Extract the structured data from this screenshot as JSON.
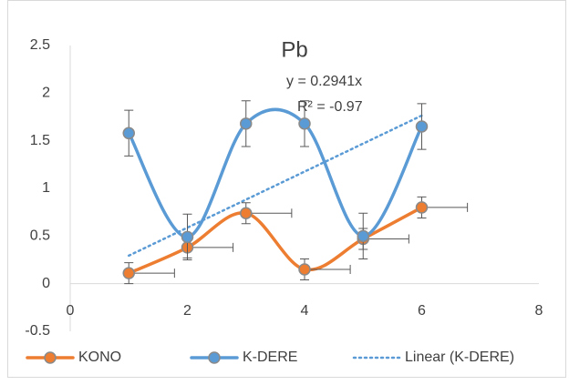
{
  "chart_data": {
    "type": "scatter",
    "title": "Pb",
    "series": [
      {
        "name": "KONO",
        "color": "#ed7d31",
        "x": [
          1,
          2,
          3,
          4,
          5,
          6
        ],
        "values": [
          0.11,
          0.38,
          0.74,
          0.15,
          0.47,
          0.8
        ],
        "y_error": 0.11,
        "x_error": 0.78
      },
      {
        "name": "K-DERE",
        "color": "#5b9bd5",
        "x": [
          1,
          2,
          3,
          4,
          5,
          6
        ],
        "values": [
          1.58,
          0.49,
          1.68,
          1.68,
          0.5,
          1.65
        ],
        "y_error": 0.24
      }
    ],
    "trendline": {
      "name": "Linear (K-DERE)",
      "series": 1,
      "slope": 0.2941,
      "color": "#5b9bd5"
    },
    "annotations": [
      "y = 0.2941x",
      "R² = -0.97"
    ],
    "xlim": [
      0,
      8
    ],
    "xticks": [
      0,
      2,
      4,
      6,
      8
    ],
    "ylim": [
      -0.5,
      2.5
    ],
    "yticks": [
      -0.5,
      0,
      0.5,
      1,
      1.5,
      2,
      2.5
    ],
    "grid": false,
    "smooth": true,
    "legend": "bottom"
  }
}
